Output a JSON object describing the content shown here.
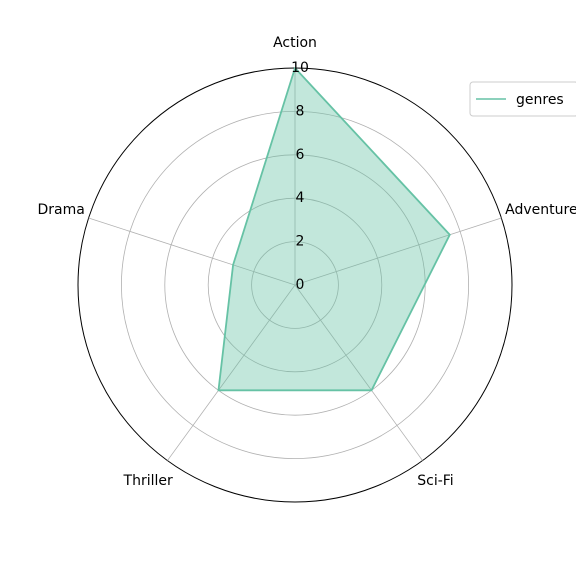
{
  "chart_data": {
    "type": "radar",
    "categories": [
      "Action",
      "Adventure",
      "Sci-Fi",
      "Thriller",
      "Drama"
    ],
    "series": [
      {
        "name": "genres",
        "values": [
          10,
          7.5,
          6,
          6,
          3
        ]
      }
    ],
    "rlim": [
      0,
      10
    ],
    "r_ticks": [
      "0",
      "2",
      "4",
      "6",
      "8",
      "10"
    ],
    "r_tick_values": [
      0,
      2,
      4,
      6,
      8,
      10
    ],
    "grid": true,
    "legend": "top-right",
    "colors": {
      "series": "#66c2a5",
      "fill": "#66c2a5",
      "grid": "#b0b0b0",
      "frame": "#000000"
    }
  }
}
